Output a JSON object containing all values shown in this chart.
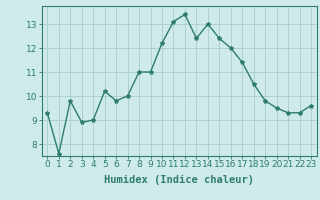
{
  "x": [
    0,
    1,
    2,
    3,
    4,
    5,
    6,
    7,
    8,
    9,
    10,
    11,
    12,
    13,
    14,
    15,
    16,
    17,
    18,
    19,
    20,
    21,
    22,
    23
  ],
  "y": [
    9.3,
    7.6,
    9.8,
    8.9,
    9.0,
    10.2,
    9.8,
    10.0,
    11.0,
    11.0,
    12.2,
    13.1,
    13.4,
    12.4,
    13.0,
    12.4,
    12.0,
    11.4,
    10.5,
    9.8,
    9.5,
    9.3,
    9.3,
    9.6
  ],
  "line_color": "#2e7d6e",
  "marker": "*",
  "marker_size": 3,
  "bg_color": "#ceeaea",
  "grid_color": "#aacccc",
  "xlabel": "Humidex (Indice chaleur)",
  "ylim": [
    7.5,
    13.75
  ],
  "xlim": [
    -0.5,
    23.5
  ],
  "yticks": [
    8,
    9,
    10,
    11,
    12,
    13
  ],
  "xticks": [
    0,
    1,
    2,
    3,
    4,
    5,
    6,
    7,
    8,
    9,
    10,
    11,
    12,
    13,
    14,
    15,
    16,
    17,
    18,
    19,
    20,
    21,
    22,
    23
  ],
  "xlabel_fontsize": 7.5,
  "tick_fontsize": 6.5,
  "line_width": 1.0
}
